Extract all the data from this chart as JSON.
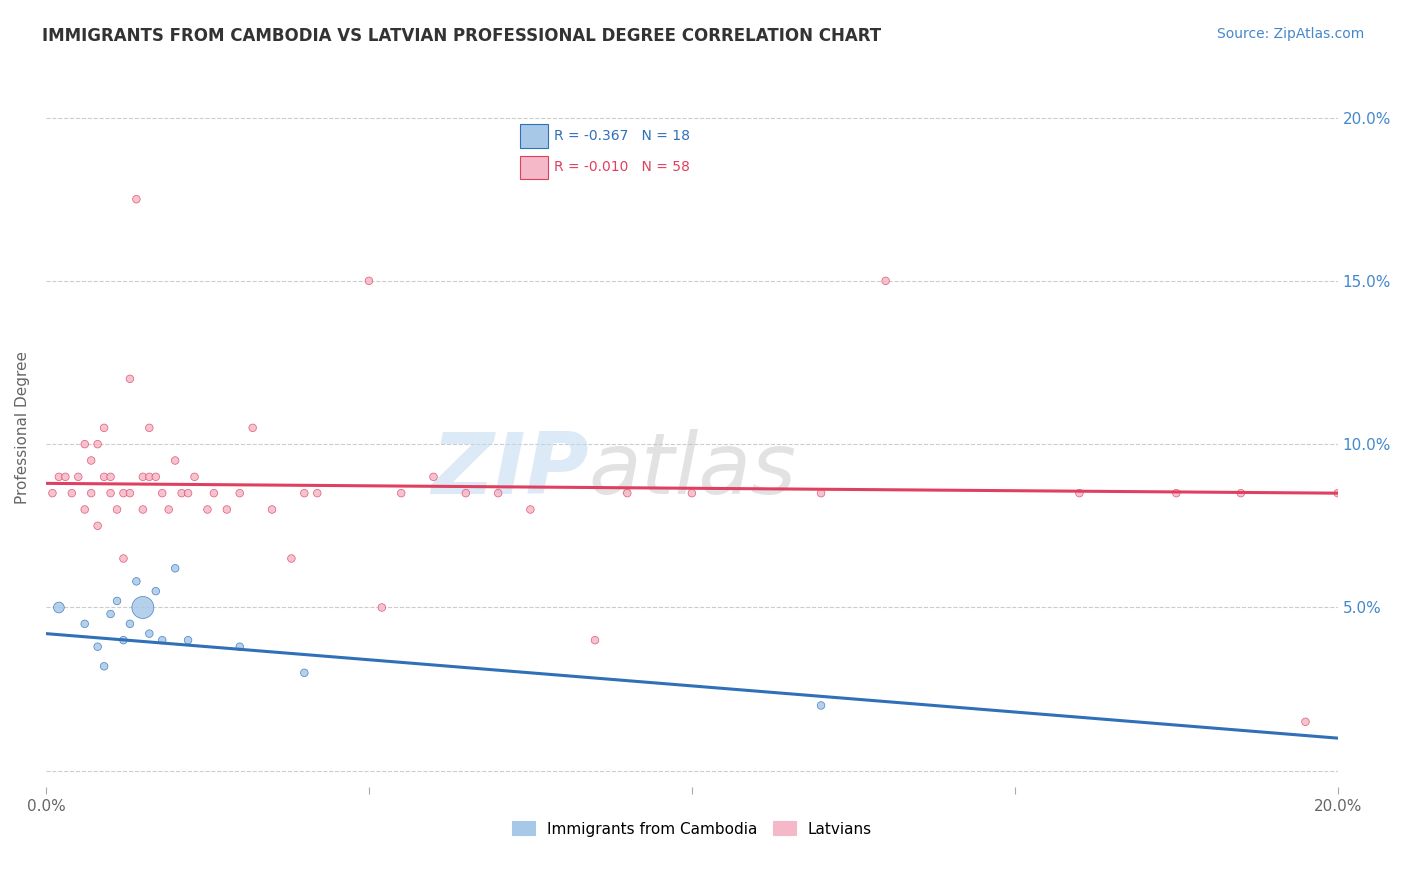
{
  "title": "IMMIGRANTS FROM CAMBODIA VS LATVIAN PROFESSIONAL DEGREE CORRELATION CHART",
  "source": "Source: ZipAtlas.com",
  "ylabel": "Professional Degree",
  "xmin": 0.0,
  "xmax": 0.2,
  "ymin": -0.005,
  "ymax": 0.215,
  "yticks": [
    0.0,
    0.05,
    0.1,
    0.15,
    0.2
  ],
  "right_ytick_labels": [
    "",
    "5.0%",
    "10.0%",
    "15.0%",
    "20.0%"
  ],
  "legend_blue_r": "R = -0.367",
  "legend_blue_n": "N = 18",
  "legend_pink_r": "R = -0.010",
  "legend_pink_n": "N = 58",
  "blue_color": "#a8c8e8",
  "pink_color": "#f4b8c8",
  "trendline_blue_color": "#3070b8",
  "trendline_pink_color": "#e04060",
  "watermark_zip": "ZIP",
  "watermark_atlas": "atlas",
  "blue_points_x": [
    0.002,
    0.006,
    0.008,
    0.009,
    0.01,
    0.011,
    0.012,
    0.013,
    0.014,
    0.015,
    0.016,
    0.017,
    0.018,
    0.02,
    0.022,
    0.03,
    0.04,
    0.12
  ],
  "blue_points_y": [
    0.05,
    0.045,
    0.038,
    0.032,
    0.048,
    0.052,
    0.04,
    0.045,
    0.058,
    0.05,
    0.042,
    0.055,
    0.04,
    0.062,
    0.04,
    0.038,
    0.03,
    0.02
  ],
  "blue_sizes": [
    60,
    30,
    30,
    30,
    30,
    30,
    30,
    30,
    30,
    250,
    30,
    30,
    30,
    30,
    30,
    30,
    30,
    30
  ],
  "pink_points_x": [
    0.001,
    0.002,
    0.003,
    0.004,
    0.005,
    0.006,
    0.006,
    0.007,
    0.007,
    0.008,
    0.008,
    0.009,
    0.009,
    0.01,
    0.01,
    0.011,
    0.012,
    0.012,
    0.013,
    0.013,
    0.014,
    0.015,
    0.015,
    0.016,
    0.016,
    0.017,
    0.018,
    0.019,
    0.02,
    0.021,
    0.022,
    0.023,
    0.025,
    0.026,
    0.028,
    0.03,
    0.032,
    0.035,
    0.038,
    0.04,
    0.042,
    0.05,
    0.052,
    0.055,
    0.06,
    0.065,
    0.07,
    0.075,
    0.085,
    0.09,
    0.1,
    0.12,
    0.13,
    0.16,
    0.175,
    0.185,
    0.195,
    0.2
  ],
  "pink_points_y": [
    0.085,
    0.09,
    0.09,
    0.085,
    0.09,
    0.1,
    0.08,
    0.095,
    0.085,
    0.1,
    0.075,
    0.105,
    0.09,
    0.09,
    0.085,
    0.08,
    0.085,
    0.065,
    0.12,
    0.085,
    0.175,
    0.08,
    0.09,
    0.105,
    0.09,
    0.09,
    0.085,
    0.08,
    0.095,
    0.085,
    0.085,
    0.09,
    0.08,
    0.085,
    0.08,
    0.085,
    0.105,
    0.08,
    0.065,
    0.085,
    0.085,
    0.15,
    0.05,
    0.085,
    0.09,
    0.085,
    0.085,
    0.08,
    0.04,
    0.085,
    0.085,
    0.085,
    0.15,
    0.085,
    0.085,
    0.085,
    0.015,
    0.085
  ],
  "pink_sizes": [
    30,
    30,
    30,
    30,
    30,
    30,
    30,
    30,
    30,
    30,
    30,
    30,
    30,
    30,
    30,
    30,
    30,
    30,
    30,
    30,
    30,
    30,
    30,
    30,
    30,
    30,
    30,
    30,
    30,
    30,
    30,
    30,
    30,
    30,
    30,
    30,
    30,
    30,
    30,
    30,
    30,
    30,
    30,
    30,
    30,
    30,
    30,
    30,
    30,
    30,
    30,
    30,
    30,
    30,
    30,
    30,
    30,
    30
  ],
  "blue_trend_x": [
    0.0,
    0.2
  ],
  "blue_trend_y": [
    0.042,
    0.01
  ],
  "pink_trend_x": [
    0.0,
    0.2
  ],
  "pink_trend_y": [
    0.088,
    0.085
  ],
  "grid_color": "#cccccc",
  "background_color": "#ffffff",
  "title_color": "#333333",
  "axis_label_color": "#666666",
  "right_axis_color": "#4488cc"
}
